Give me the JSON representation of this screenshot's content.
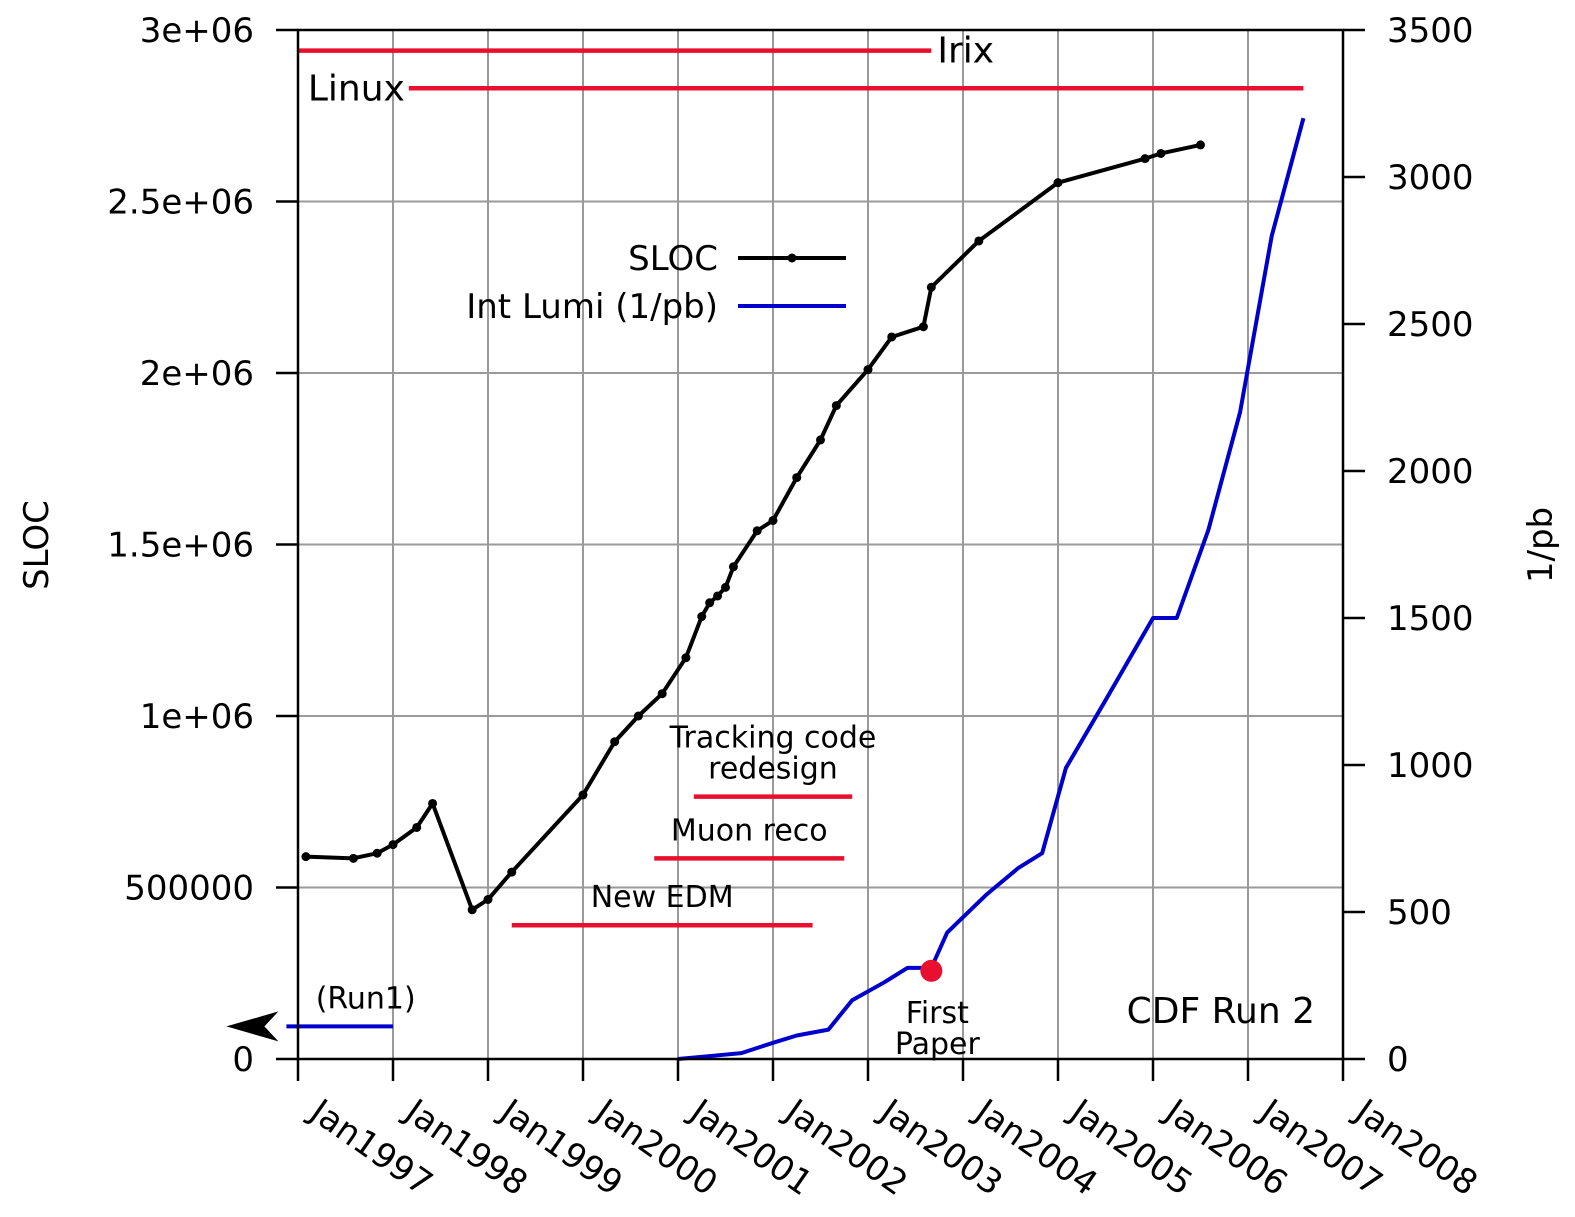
{
  "chart_data": {
    "type": "line",
    "x_axis": {
      "type": "date",
      "range": [
        "1997-01",
        "2008-01"
      ],
      "ticks": [
        "Jan1997",
        "Jan1998",
        "Jan1999",
        "Jan2000",
        "Jan2001",
        "Jan2002",
        "Jan2003",
        "Jan2004",
        "Jan2005",
        "Jan2006",
        "Jan2007",
        "Jan2008"
      ]
    },
    "y_axis_left": {
      "label": "SLOC",
      "range": [
        0,
        3000000
      ],
      "ticks": [
        {
          "value": 0,
          "label": "0"
        },
        {
          "value": 500000,
          "label": "500000"
        },
        {
          "value": 1000000,
          "label": "1e+06"
        },
        {
          "value": 1500000,
          "label": "1.5e+06"
        },
        {
          "value": 2000000,
          "label": "2e+06"
        },
        {
          "value": 2500000,
          "label": "2.5e+06"
        },
        {
          "value": 3000000,
          "label": "3e+06"
        }
      ]
    },
    "y_axis_right": {
      "label": "1/pb",
      "range": [
        0,
        3500
      ],
      "ticks": [
        {
          "value": 0,
          "label": "0"
        },
        {
          "value": 500,
          "label": "500"
        },
        {
          "value": 1000,
          "label": "1000"
        },
        {
          "value": 1500,
          "label": "1500"
        },
        {
          "value": 2000,
          "label": "2000"
        },
        {
          "value": 2500,
          "label": "2500"
        },
        {
          "value": 3000,
          "label": "3000"
        },
        {
          "value": 3500,
          "label": "3500"
        }
      ]
    },
    "grid": true,
    "legend": {
      "placement": "upper-middle",
      "entries": [
        {
          "name": "SLOC",
          "color": "#000000",
          "marker": "dot"
        },
        {
          "name": "Int Lumi (1/pb)",
          "color": "#0000cc",
          "marker": "none"
        }
      ]
    },
    "series": [
      {
        "name": "SLOC",
        "axis": "left",
        "color": "#000000",
        "markers": true,
        "points": [
          [
            "1997-02",
            590000
          ],
          [
            "1997-08",
            585000
          ],
          [
            "1997-11",
            600000
          ],
          [
            "1998-01",
            625000
          ],
          [
            "1998-04",
            675000
          ],
          [
            "1998-06",
            745000
          ],
          [
            "1998-11",
            435000
          ],
          [
            "1999-01",
            465000
          ],
          [
            "1999-04",
            545000
          ],
          [
            "2000-01",
            770000
          ],
          [
            "2000-05",
            925000
          ],
          [
            "2000-08",
            1000000
          ],
          [
            "2000-11",
            1065000
          ],
          [
            "2001-02",
            1170000
          ],
          [
            "2001-04",
            1290000
          ],
          [
            "2001-05",
            1330000
          ],
          [
            "2001-06",
            1350000
          ],
          [
            "2001-07",
            1375000
          ],
          [
            "2001-08",
            1435000
          ],
          [
            "2001-11",
            1540000
          ],
          [
            "2002-01",
            1570000
          ],
          [
            "2002-04",
            1695000
          ],
          [
            "2002-07",
            1805000
          ],
          [
            "2002-09",
            1905000
          ],
          [
            "2003-01",
            2010000
          ],
          [
            "2003-04",
            2105000
          ],
          [
            "2003-08",
            2135000
          ],
          [
            "2003-09",
            2250000
          ],
          [
            "2004-03",
            2385000
          ],
          [
            "2005-01",
            2555000
          ],
          [
            "2005-12",
            2625000
          ],
          [
            "2006-02",
            2640000
          ],
          [
            "2006-07",
            2665000
          ]
        ]
      },
      {
        "name": "Int Lumi (1/pb)",
        "axis": "right",
        "color": "#0000cc",
        "markers": false,
        "points": [
          [
            "2001-01",
            0
          ],
          [
            "2001-05",
            10
          ],
          [
            "2001-09",
            20
          ],
          [
            "2002-01",
            55
          ],
          [
            "2002-04",
            80
          ],
          [
            "2002-08",
            100
          ],
          [
            "2002-11",
            200
          ],
          [
            "2003-03",
            260
          ],
          [
            "2003-06",
            310
          ],
          [
            "2003-09",
            310
          ],
          [
            "2003-11",
            430
          ],
          [
            "2004-04",
            560
          ],
          [
            "2004-08",
            650
          ],
          [
            "2004-11",
            700
          ],
          [
            "2005-02",
            990
          ],
          [
            "2005-07",
            1220
          ],
          [
            "2006-01",
            1500
          ],
          [
            "2006-04",
            1500
          ],
          [
            "2006-08",
            1800
          ],
          [
            "2006-12",
            2200
          ],
          [
            "2007-04",
            2800
          ],
          [
            "2007-08",
            3200
          ]
        ]
      }
    ],
    "bars": [
      {
        "label": "Irix",
        "start": "1997-01",
        "end": "2003-09",
        "level": 2940000,
        "label_pos": "right"
      },
      {
        "label": "Linux",
        "start": "1998-03",
        "end": "2007-08",
        "level": 2830000,
        "label_pos": "left"
      },
      {
        "label": "Tracking code redesign",
        "label_lines": [
          "Tracking code",
          "redesign"
        ],
        "start": "2001-03",
        "end": "2002-11",
        "level": 765000,
        "label_pos": "above"
      },
      {
        "label": "Muon reco",
        "start": "2000-10",
        "end": "2002-10",
        "level": 585000,
        "label_pos": "above"
      },
      {
        "label": "New EDM",
        "start": "1999-04",
        "end": "2002-06",
        "level": 390000,
        "label_pos": "above"
      },
      {
        "label": "(Run1)",
        "start": "1996-08",
        "end": "1998-01",
        "level": 95000,
        "label_pos": "above",
        "arrow": "left",
        "color": "#0000cc"
      }
    ],
    "annotations": [
      {
        "text": "First Paper",
        "lines": [
          "First",
          "Paper"
        ],
        "x": "2003-09",
        "y": 300,
        "axis": "right",
        "marker": "red-dot"
      },
      {
        "text": "CDF Run 2",
        "position": "bottom-right"
      }
    ]
  }
}
